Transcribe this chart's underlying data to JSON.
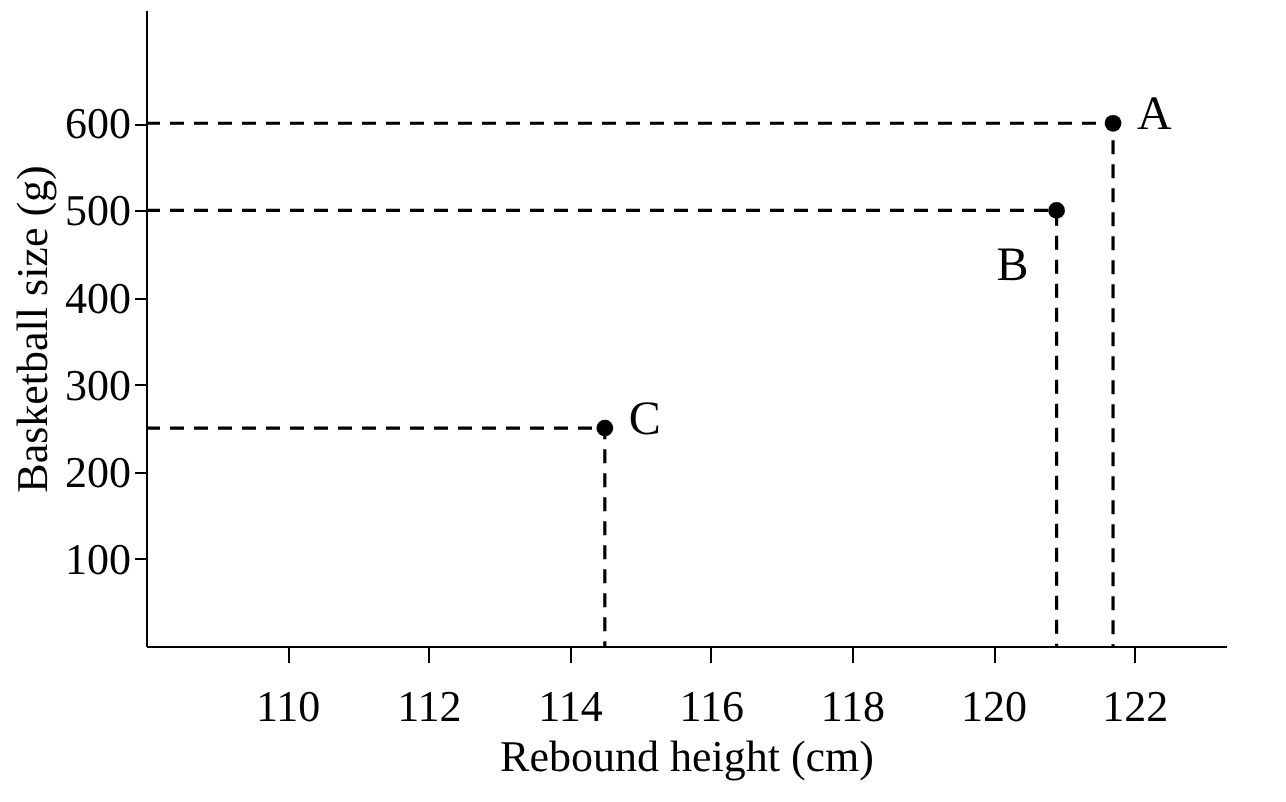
{
  "chart_data": {
    "type": "scatter",
    "xlabel": "Rebound height (cm)",
    "ylabel": "Basketball size (g)",
    "xlim": [
      108,
      123.3
    ],
    "xticks": [
      110,
      112,
      114,
      116,
      118,
      120,
      122
    ],
    "ylim": [
      0,
      730
    ],
    "yticks": [
      100,
      200,
      300,
      400,
      500,
      600
    ],
    "grid": false,
    "series": [
      {
        "type": "scatter",
        "marker": "circle",
        "color": "#000000",
        "x": [
          121.7,
          120.9,
          114.5
        ],
        "values": [
          600,
          500,
          250
        ]
      },
      {
        "type": "line",
        "line_style": "dashed",
        "marker": "none",
        "color": "#000000",
        "x": [
          108,
          121.7,
          121.7
        ],
        "values": [
          600,
          600,
          0
        ]
      },
      {
        "type": "line",
        "line_style": "dashed",
        "marker": "none",
        "color": "#000000",
        "x": [
          108,
          120.9,
          120.9
        ],
        "values": [
          500,
          500,
          0
        ]
      },
      {
        "type": "line",
        "line_style": "dashed",
        "marker": "none",
        "color": "#000000",
        "x": [
          108,
          114.5,
          114.5
        ],
        "values": [
          250,
          250,
          0
        ]
      }
    ],
    "annotations": [
      {
        "text": "A",
        "x": 121.7,
        "y": 600
      },
      {
        "text": "B",
        "x": 120.9,
        "y": 500
      },
      {
        "text": "C",
        "x": 114.5,
        "y": 250
      }
    ]
  }
}
